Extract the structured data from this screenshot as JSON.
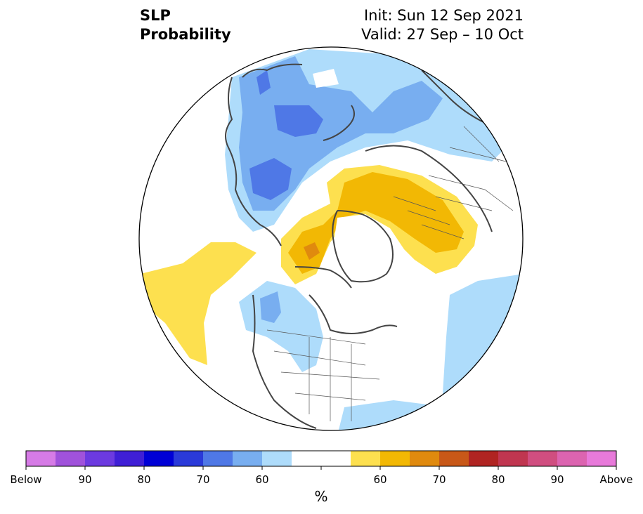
{
  "title": {
    "left_line1": "SLP",
    "left_line2": "Probability",
    "right_line1": "Init: Sun 12 Sep 2021",
    "right_line2": "Valid: 27 Sep – 10 Oct"
  },
  "colorbar": {
    "colors": [
      "#d67be6",
      "#a052db",
      "#6c3ae0",
      "#3f1fd6",
      "#0000d6",
      "#2a3ad9",
      "#4f78e6",
      "#78aef0",
      "#aedcfb",
      "#ffffff",
      "#ffffff",
      "#fde04f",
      "#f2b804",
      "#e08a0e",
      "#c85818",
      "#b02422",
      "#c03650",
      "#d04e80",
      "#dc64b0",
      "#e87ada"
    ],
    "labels": [
      "Below",
      "90",
      "80",
      "70",
      "60",
      "60",
      "70",
      "80",
      "90",
      "Above"
    ],
    "unit": "%"
  },
  "map": {
    "projection": "north polar stereographic",
    "colors": {
      "light_blue": "#aedcfb",
      "mid_blue": "#78aef0",
      "blue": "#4f78e6",
      "yellow": "#fde04f",
      "gold": "#f2b804",
      "orange": "#e08a0e",
      "coast": "#444444"
    }
  }
}
